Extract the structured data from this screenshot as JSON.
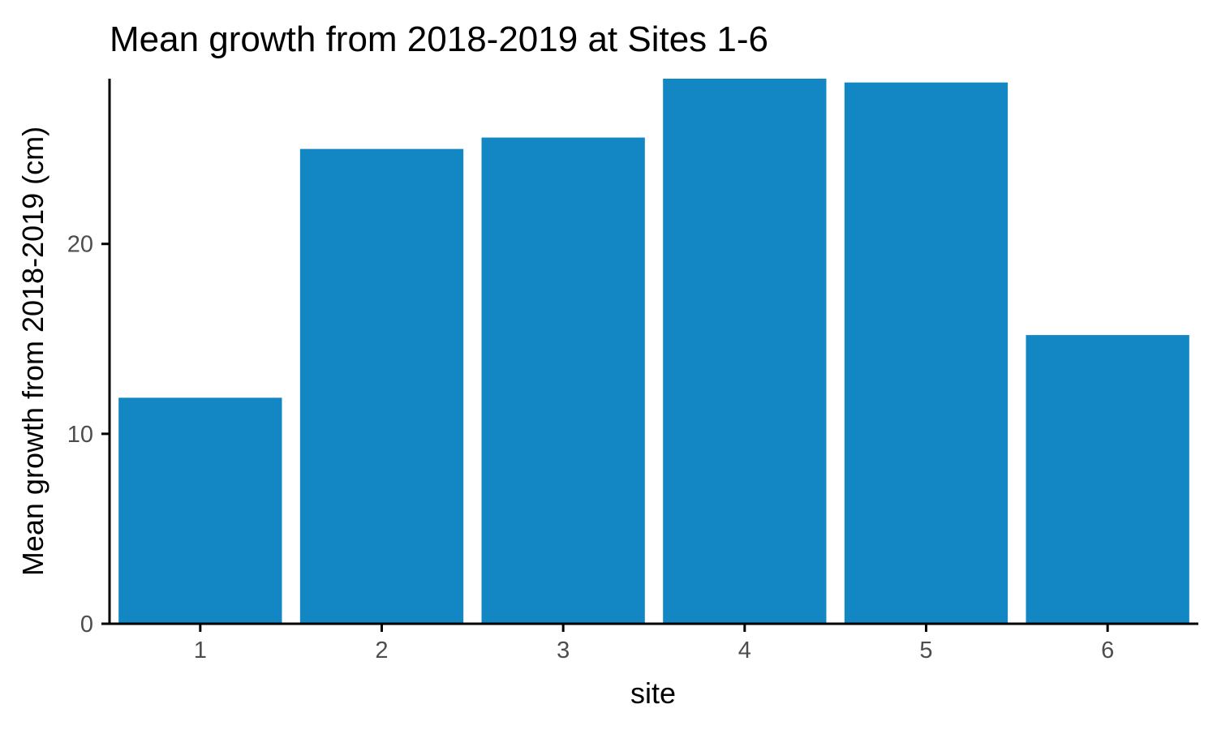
{
  "chart_data": {
    "type": "bar",
    "title": "Mean growth from 2018-2019 at Sites 1-6",
    "xlabel": "site",
    "ylabel": "Mean growth from 2018-2019 (cm)",
    "categories": [
      "1",
      "2",
      "3",
      "4",
      "5",
      "6"
    ],
    "values": [
      11.9,
      25.0,
      25.6,
      28.7,
      28.5,
      15.2
    ],
    "ylim": [
      0,
      28.7
    ],
    "y_ticks": [
      0,
      10,
      20
    ],
    "bar_color": "#1287c3",
    "grid": false,
    "legend": "none"
  }
}
